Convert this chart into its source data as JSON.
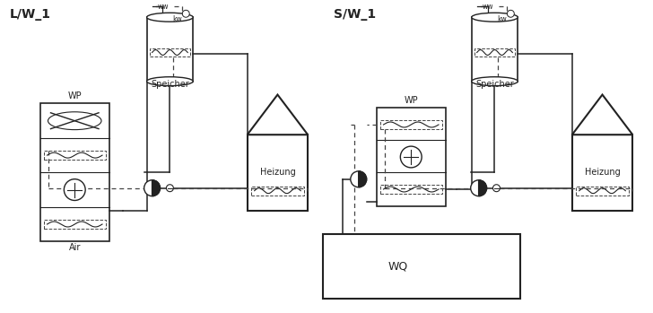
{
  "title_left": "L/W_1",
  "title_right": "S/W_1",
  "label_air": "Air",
  "label_wq": "WQ",
  "label_speicher": "Speicher",
  "label_heizung": "Heizung",
  "label_wp": "WP",
  "label_ww": "ww",
  "label_kw": "kw",
  "bg_color": "#ffffff",
  "line_color": "#222222",
  "dashed_color": "#444444"
}
